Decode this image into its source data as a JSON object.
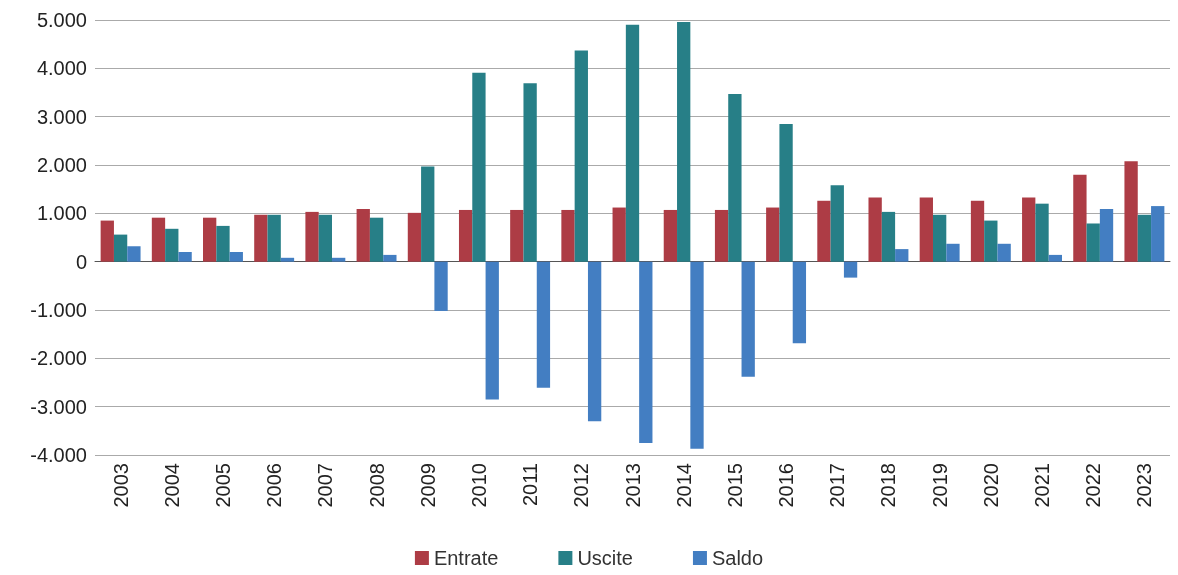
{
  "chart_data": {
    "type": "bar",
    "categories": [
      "2003",
      "2004",
      "2005",
      "2006",
      "2007",
      "2008",
      "2009",
      "2010",
      "2011",
      "2012",
      "2013",
      "2014",
      "2015",
      "2016",
      "2017",
      "2018",
      "2019",
      "2020",
      "2021",
      "2022",
      "2023"
    ],
    "series": [
      {
        "name": "Entrate",
        "color": "#ad3c45",
        "values": [
          850,
          910,
          910,
          970,
          1030,
          1090,
          1010,
          1070,
          1070,
          1070,
          1120,
          1070,
          1070,
          1120,
          1260,
          1330,
          1330,
          1260,
          1330,
          1800,
          2080
        ]
      },
      {
        "name": "Uscite",
        "color": "#277f87",
        "values": [
          560,
          680,
          740,
          970,
          970,
          910,
          1970,
          3910,
          3690,
          4370,
          4900,
          4960,
          3470,
          2850,
          1580,
          1030,
          970,
          850,
          1200,
          790,
          970
        ]
      },
      {
        "name": "Saldo",
        "color": "#437ec2",
        "values": [
          320,
          200,
          200,
          80,
          80,
          140,
          -1020,
          -2850,
          -2610,
          -3300,
          -3750,
          -3870,
          -2380,
          -1690,
          -330,
          260,
          370,
          370,
          140,
          1090,
          1150
        ]
      }
    ],
    "ylim": [
      -4000,
      5000
    ],
    "yticks": [
      {
        "value": -4000,
        "label": "-4.000"
      },
      {
        "value": -3000,
        "label": "-3.000"
      },
      {
        "value": -2000,
        "label": "-2.000"
      },
      {
        "value": -1000,
        "label": "-1.000"
      },
      0,
      {
        "value": 1000,
        "label": "1.000"
      },
      {
        "value": 2000,
        "label": "2.000"
      },
      {
        "value": 3000,
        "label": "3.000"
      },
      {
        "value": 4000,
        "label": "4.000"
      },
      {
        "value": 5000,
        "label": "5.000"
      }
    ],
    "grid": "y",
    "legend": "bottom"
  }
}
